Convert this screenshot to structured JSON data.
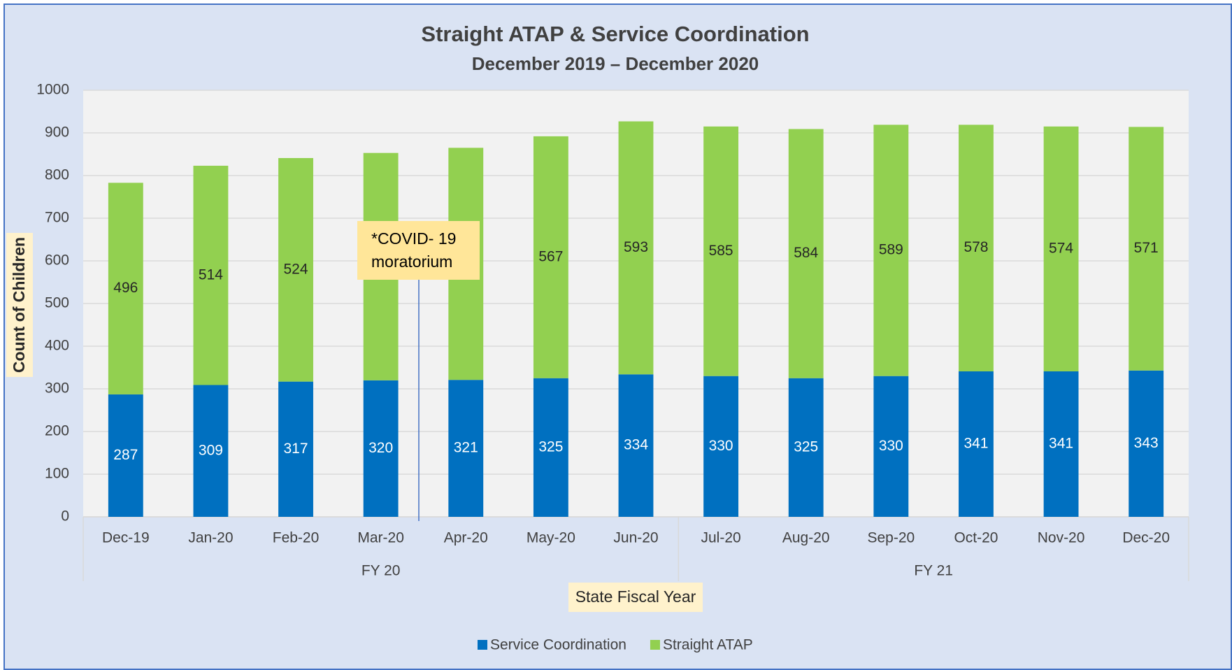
{
  "chart_data": {
    "type": "stacked_bar",
    "title": "Straight ATAP & Service Coordination",
    "subtitle": "December 2019 – December 2020",
    "x_label": "State Fiscal Year",
    "y_label": "Count of Children",
    "categories": [
      "Dec-19",
      "Jan-20",
      "Feb-20",
      "Mar-20",
      "Apr-20",
      "May-20",
      "Jun-20",
      "Jul-20",
      "Aug-20",
      "Sep-20",
      "Oct-20",
      "Nov-20",
      "Dec-20"
    ],
    "x_groups": [
      {
        "name": "FY 20",
        "start": "Dec-19",
        "end": "Jun-20"
      },
      {
        "name": "FY 21",
        "start": "Jul-20",
        "end": "Dec-20"
      }
    ],
    "series": [
      {
        "name": "Service Coordination",
        "color": "#0070c0",
        "values": [
          287,
          309,
          317,
          320,
          321,
          325,
          334,
          330,
          325,
          330,
          341,
          341,
          343
        ]
      },
      {
        "name": "Straight ATAP",
        "color": "#92d050",
        "values": [
          496,
          514,
          524,
          533,
          544,
          567,
          593,
          585,
          584,
          589,
          578,
          574,
          571
        ]
      }
    ],
    "value_labels_shown": [
      [
        true,
        true,
        true,
        true,
        true,
        true,
        true,
        true,
        true,
        true,
        true,
        true,
        true
      ],
      [
        true,
        true,
        true,
        false,
        false,
        true,
        true,
        true,
        true,
        true,
        true,
        true,
        true
      ]
    ],
    "annotation": [
      "*COVID- 19",
      "moratorium"
    ],
    "ylim": [
      0,
      1000
    ],
    "yticks": [
      0,
      100,
      200,
      300,
      400,
      500,
      600,
      700,
      800,
      900,
      1000
    ],
    "grid": true,
    "legend": "bottom"
  }
}
